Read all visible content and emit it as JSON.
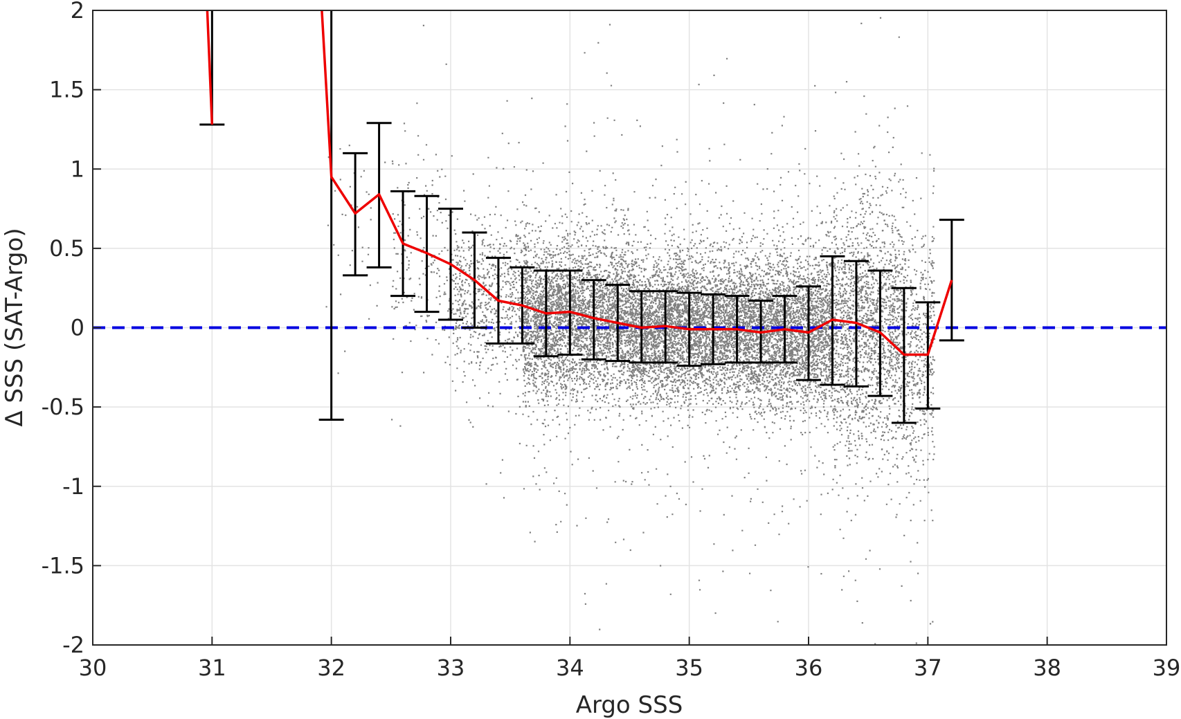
{
  "chart_data": {
    "type": "scatter",
    "xlabel": "Argo SSS",
    "ylabel": "Δ SSS (SAT-Argo)",
    "xlim": [
      30,
      39
    ],
    "ylim": [
      -2,
      2
    ],
    "xticks": [
      "30",
      "31",
      "32",
      "33",
      "34",
      "35",
      "36",
      "37",
      "38",
      "39"
    ],
    "yticks": [
      "-2",
      "-1.5",
      "-1",
      "-0.5",
      "0",
      "0.5",
      "1",
      "1.5",
      "2"
    ],
    "grid": true,
    "reference_line": {
      "y": 0,
      "style": "dashed",
      "color": "#0000e0"
    },
    "series": [
      {
        "kind": "binned-mean",
        "color": "#ee0000",
        "segments": [
          [
            [
              30.96,
              2.0
            ],
            [
              31.0,
              1.28
            ]
          ],
          [
            [
              31.92,
              2.0
            ],
            [
              32.0,
              0.95
            ],
            [
              32.2,
              0.72
            ],
            [
              32.4,
              0.84
            ],
            [
              32.6,
              0.53
            ],
            [
              32.8,
              0.47
            ],
            [
              33.0,
              0.4
            ],
            [
              33.2,
              0.3
            ],
            [
              33.4,
              0.17
            ],
            [
              33.6,
              0.14
            ],
            [
              33.8,
              0.09
            ],
            [
              34.0,
              0.1
            ],
            [
              34.2,
              0.06
            ],
            [
              34.4,
              0.03
            ],
            [
              34.6,
              0.0
            ],
            [
              34.8,
              0.01
            ],
            [
              35.0,
              -0.01
            ],
            [
              35.2,
              -0.01
            ],
            [
              35.4,
              -0.01
            ],
            [
              35.6,
              -0.03
            ],
            [
              35.8,
              -0.01
            ],
            [
              36.0,
              -0.03
            ],
            [
              36.2,
              0.05
            ],
            [
              36.4,
              0.03
            ],
            [
              36.6,
              -0.03
            ],
            [
              36.8,
              -0.17
            ],
            [
              37.0,
              -0.17
            ],
            [
              37.2,
              0.3
            ]
          ]
        ]
      },
      {
        "kind": "error-bars",
        "color": "#000000",
        "bars": [
          {
            "x": 31.0,
            "low": 1.28,
            "high": 2.0
          },
          {
            "x": 32.0,
            "low": -0.58,
            "high": 2.0
          },
          {
            "x": 32.2,
            "low": 0.33,
            "high": 1.1
          },
          {
            "x": 32.4,
            "low": 0.38,
            "high": 1.29
          },
          {
            "x": 32.6,
            "low": 0.2,
            "high": 0.86
          },
          {
            "x": 32.8,
            "low": 0.1,
            "high": 0.83
          },
          {
            "x": 33.0,
            "low": 0.05,
            "high": 0.75
          },
          {
            "x": 33.2,
            "low": 0.0,
            "high": 0.6
          },
          {
            "x": 33.4,
            "low": -0.1,
            "high": 0.44
          },
          {
            "x": 33.6,
            "low": -0.1,
            "high": 0.38
          },
          {
            "x": 33.8,
            "low": -0.18,
            "high": 0.36
          },
          {
            "x": 34.0,
            "low": -0.17,
            "high": 0.36
          },
          {
            "x": 34.2,
            "low": -0.2,
            "high": 0.3
          },
          {
            "x": 34.4,
            "low": -0.21,
            "high": 0.27
          },
          {
            "x": 34.6,
            "low": -0.22,
            "high": 0.23
          },
          {
            "x": 34.8,
            "low": -0.22,
            "high": 0.23
          },
          {
            "x": 35.0,
            "low": -0.24,
            "high": 0.22
          },
          {
            "x": 35.2,
            "low": -0.23,
            "high": 0.21
          },
          {
            "x": 35.4,
            "low": -0.22,
            "high": 0.2
          },
          {
            "x": 35.6,
            "low": -0.22,
            "high": 0.17
          },
          {
            "x": 35.8,
            "low": -0.22,
            "high": 0.2
          },
          {
            "x": 36.0,
            "low": -0.33,
            "high": 0.26
          },
          {
            "x": 36.2,
            "low": -0.36,
            "high": 0.45
          },
          {
            "x": 36.4,
            "low": -0.37,
            "high": 0.42
          },
          {
            "x": 36.6,
            "low": -0.43,
            "high": 0.36
          },
          {
            "x": 36.8,
            "low": -0.6,
            "high": 0.25
          },
          {
            "x": 37.0,
            "low": -0.51,
            "high": 0.16
          },
          {
            "x": 37.2,
            "low": -0.08,
            "high": 0.68
          }
        ]
      },
      {
        "kind": "scatter-cloud",
        "color": "#808080",
        "description_points": "dense scatter of individual collocations",
        "density_profile": [
          {
            "x_range": [
              31.9,
              32.5
            ],
            "center": 0.7,
            "spread": 0.35,
            "count": 40
          },
          {
            "x_range": [
              32.5,
              33.0
            ],
            "center": 0.45,
            "spread": 0.3,
            "count": 200
          },
          {
            "x_range": [
              33.0,
              33.6
            ],
            "center": 0.2,
            "spread": 0.25,
            "count": 700
          },
          {
            "x_range": [
              33.6,
              34.5
            ],
            "center": 0.06,
            "spread": 0.24,
            "count": 3800
          },
          {
            "x_range": [
              34.5,
              35.5
            ],
            "center": 0.0,
            "spread": 0.22,
            "count": 4600
          },
          {
            "x_range": [
              35.5,
              36.2
            ],
            "center": -0.02,
            "spread": 0.24,
            "count": 3200
          },
          {
            "x_range": [
              36.2,
              36.8
            ],
            "center": 0.0,
            "spread": 0.38,
            "count": 2000
          },
          {
            "x_range": [
              36.8,
              37.05
            ],
            "center": -0.15,
            "spread": 0.4,
            "count": 500
          }
        ]
      }
    ]
  }
}
